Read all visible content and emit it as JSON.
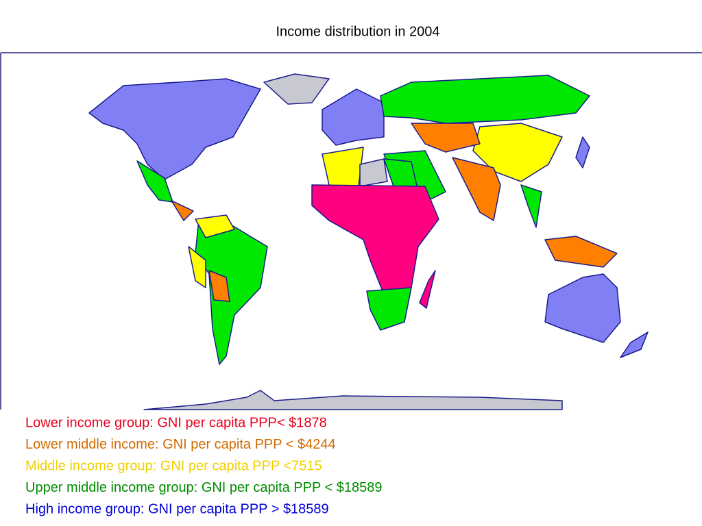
{
  "title": "Income distribution in 2004",
  "legend": [
    {
      "text": "Lower income group: GNI per capita PPP< $1878",
      "color": "#e8001c"
    },
    {
      "text": "Lower middle income: GNI per capita PPP < $4244",
      "color": "#d06a00"
    },
    {
      "text": "Middle income group: GNI per capita PPP <7515",
      "color": "#f0d000"
    },
    {
      "text": "Upper middle income group: GNI per capita PPP < $18589",
      "color": "#008c00"
    },
    {
      "text": "High income group: GNI per capita PPP > $18589",
      "color": "#0000d8"
    }
  ]
}
